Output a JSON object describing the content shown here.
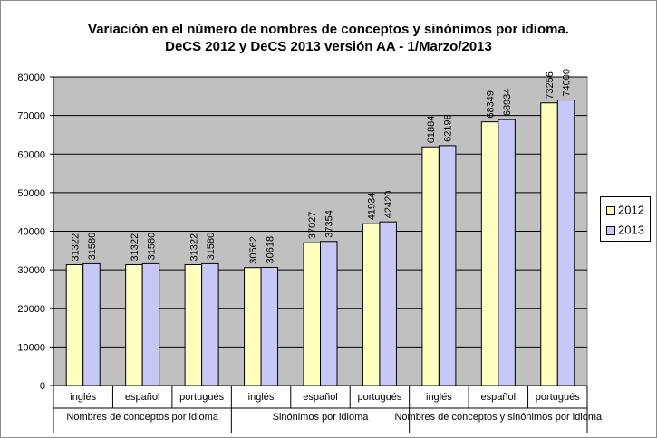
{
  "chart_data": {
    "type": "bar",
    "title_line1": "Variación en el número de nombres de conceptos y sinónimos por idioma.",
    "title_line2": "DeCS 2012 y DeCS 2013 versión AA  - 1/Marzo/2013",
    "categories": [
      "inglés",
      "español",
      "portugués",
      "inglés",
      "español",
      "portugués",
      "inglés",
      "español",
      "portugués"
    ],
    "groups": [
      {
        "label": "Nombres de conceptos por idioma",
        "span": 3
      },
      {
        "label": "Sinónimos por idioma",
        "span": 3
      },
      {
        "label": "Nombres de conceptos y sinónimos por idioma",
        "span": 3
      }
    ],
    "series": [
      {
        "name": "2012",
        "color": "#ffffc0",
        "values": [
          31322,
          31322,
          31322,
          30562,
          37027,
          41934,
          61884,
          68349,
          73256
        ]
      },
      {
        "name": "2013",
        "color": "#c8c8f8",
        "values": [
          31580,
          31580,
          31580,
          30618,
          37354,
          42420,
          62198,
          68934,
          74000
        ]
      }
    ],
    "ylim": [
      0,
      80000
    ],
    "yticks": [
      0,
      10000,
      20000,
      30000,
      40000,
      50000,
      60000,
      70000,
      80000
    ],
    "grid": true,
    "plot_background": "#c0c0c0",
    "legend_position": "right"
  }
}
